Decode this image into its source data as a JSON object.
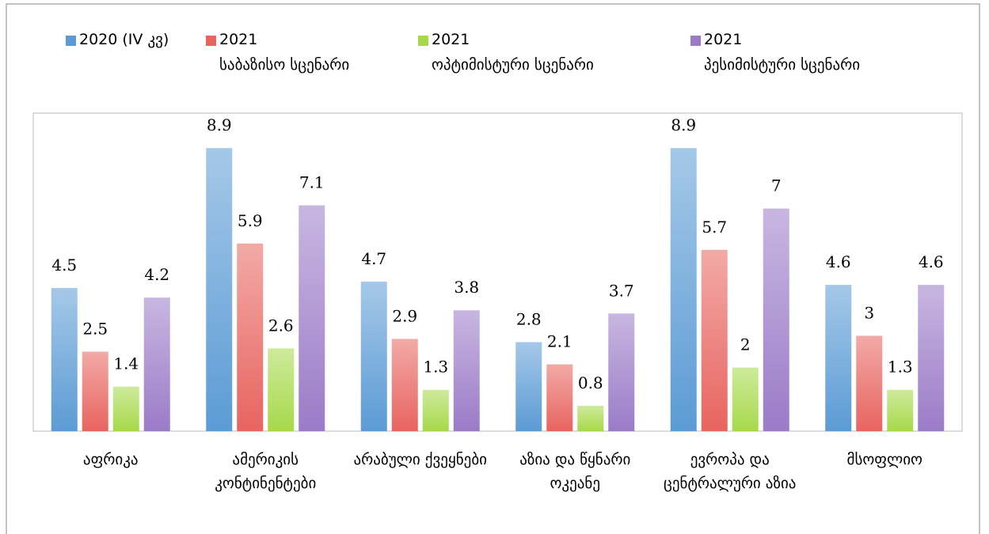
{
  "chart_data": {
    "type": "bar",
    "categories": [
      "აფრიკა",
      "ამერიკის კონტინენტები",
      "არაბული ქვეყნები",
      "აზია და წყნარი ოკეანე",
      "ევროპა და ცენტრალური აზია",
      "მსოფლიო"
    ],
    "series": [
      {
        "name": "2020 (IV კვ)",
        "color": "#5b9bd5",
        "values": [
          4.5,
          8.9,
          4.7,
          2.8,
          8.9,
          4.6
        ]
      },
      {
        "name": "2021\nსაბაზისო სცენარი",
        "color": "#e8645f",
        "values": [
          2.5,
          5.9,
          2.9,
          2.1,
          5.7,
          3
        ]
      },
      {
        "name": "2021\nოპტიმისტური სცენარი",
        "color": "#a6d94a",
        "values": [
          1.4,
          2.6,
          1.3,
          0.8,
          2,
          1.3
        ]
      },
      {
        "name": "2021\nპესიმისტური სცენარი",
        "color": "#9b7bc8",
        "values": [
          4.2,
          7.1,
          3.8,
          3.7,
          7,
          4.6
        ]
      }
    ],
    "ylim": [
      0,
      10
    ]
  }
}
